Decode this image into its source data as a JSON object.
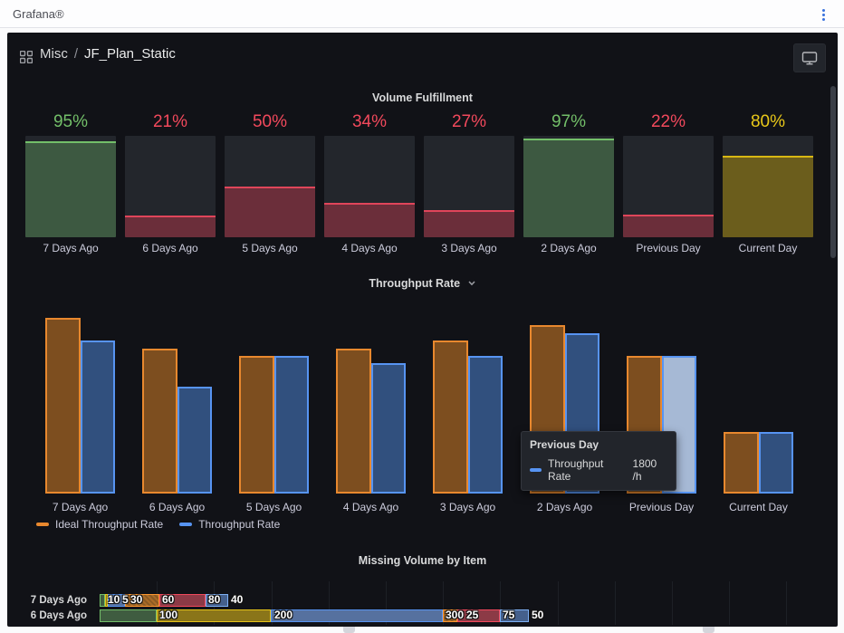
{
  "topbar": {
    "brand": "Grafana®"
  },
  "icons": {
    "menu": "kebab-menu-icon",
    "breadcrumb": "apps-grid-icon",
    "view_mode": "tv-monitor-icon",
    "panel_menu": "chevron-down-icon"
  },
  "breadcrumb": {
    "section": "Misc",
    "separator": "/",
    "dashboard": "JF_Plan_Static"
  },
  "volume_panel": {
    "title": "Volume Fulfillment",
    "palette": {
      "green": {
        "accent": "#73bf69",
        "fill": "#3d5941",
        "text": "#73bf69"
      },
      "red": {
        "accent": "#e0455a",
        "fill": "#6b2e3a",
        "text": "#f2495c"
      },
      "yellow": {
        "accent": "#d9b813",
        "fill": "#6b5d1c",
        "text": "#e9c819"
      }
    },
    "gauges": [
      {
        "label": "7 Days Ago",
        "percent": 95,
        "display": "95%",
        "color": "green"
      },
      {
        "label": "6 Days Ago",
        "percent": 21,
        "display": "21%",
        "color": "red"
      },
      {
        "label": "5 Days Ago",
        "percent": 50,
        "display": "50%",
        "color": "red"
      },
      {
        "label": "4 Days Ago",
        "percent": 34,
        "display": "34%",
        "color": "red"
      },
      {
        "label": "3 Days Ago",
        "percent": 27,
        "display": "27%",
        "color": "red"
      },
      {
        "label": "2 Days Ago",
        "percent": 97,
        "display": "97%",
        "color": "green"
      },
      {
        "label": "Previous Day",
        "percent": 22,
        "display": "22%",
        "color": "red"
      },
      {
        "label": "Current Day",
        "percent": 80,
        "display": "80%",
        "color": "yellow"
      }
    ]
  },
  "throughput_panel": {
    "title": "Throughput Rate",
    "categories": [
      "7 Days Ago",
      "6 Days Ago",
      "5 Days Ago",
      "4 Days Ago",
      "3 Days Ago",
      "2 Days Ago",
      "Previous Day",
      "Current Day"
    ],
    "series": [
      {
        "name": "Ideal Throughput Rate",
        "border": "#e8882e",
        "fill": "#7d4e1f",
        "values": [
          2300,
          1900,
          1800,
          1900,
          2000,
          2200,
          1800,
          800
        ]
      },
      {
        "name": "Throughput Rate",
        "border": "#5794f2",
        "fill": "#31507e",
        "values": [
          2000,
          1400,
          1800,
          1700,
          1800,
          2100,
          1800,
          800
        ]
      }
    ],
    "hover": {
      "category_index": 6,
      "series_index": 1,
      "fill": "#a6b9d5"
    },
    "legend": [
      {
        "label": "Ideal Throughput Rate",
        "color": "#e8882e"
      },
      {
        "label": "Throughput Rate",
        "color": "#5794f2"
      }
    ],
    "tooltip": {
      "title": "Previous Day",
      "series": "Throughput Rate",
      "value": "1800 /h",
      "color": "#5794f2"
    }
  },
  "missing_panel": {
    "title": "Missing Volume by Item",
    "palette": {
      "green": {
        "border": "#73bf69",
        "fill": "#3f5c40"
      },
      "yellow": {
        "border": "#e7c419",
        "fill": "#8a7519"
      },
      "blue": {
        "border": "#5794f2",
        "fill": "#56719f"
      },
      "orange": {
        "border": "#ff9830",
        "fill": "#8a5a24"
      },
      "red": {
        "border": "#f2495c",
        "fill": "#8c3a46"
      },
      "lightblue": {
        "border": "#7eb0f5",
        "fill": "#45608c"
      }
    },
    "rows": [
      {
        "label": "7 Days Ago",
        "segments": [
          {
            "value": 10,
            "color": "green"
          },
          {
            "value": 5,
            "color": "yellow"
          },
          {
            "value": 30,
            "color": "blue"
          },
          {
            "value": 60,
            "color": "orange"
          },
          {
            "value": 80,
            "color": "red"
          },
          {
            "value": 40,
            "color": "lightblue"
          }
        ]
      },
      {
        "label": "6 Days Ago",
        "segments": [
          {
            "value": 100,
            "color": "green"
          },
          {
            "value": 200,
            "color": "yellow"
          },
          {
            "value": 300,
            "color": "blue"
          },
          {
            "value": 25,
            "color": "orange"
          },
          {
            "value": 75,
            "color": "red"
          },
          {
            "value": 50,
            "color": "lightblue"
          }
        ]
      }
    ]
  },
  "chart_data": [
    {
      "type": "bar",
      "title": "Volume Fulfillment",
      "categories": [
        "7 Days Ago",
        "6 Days Ago",
        "5 Days Ago",
        "4 Days Ago",
        "3 Days Ago",
        "2 Days Ago",
        "Previous Day",
        "Current Day"
      ],
      "values": [
        95,
        21,
        50,
        34,
        27,
        97,
        22,
        80
      ],
      "unit": "%",
      "value_colors": [
        "green",
        "red",
        "red",
        "red",
        "red",
        "green",
        "red",
        "yellow"
      ],
      "ylim": [
        0,
        100
      ],
      "grid": false,
      "legend_position": "none"
    },
    {
      "type": "bar",
      "title": "Throughput Rate",
      "categories": [
        "7 Days Ago",
        "6 Days Ago",
        "5 Days Ago",
        "4 Days Ago",
        "3 Days Ago",
        "2 Days Ago",
        "Previous Day",
        "Current Day"
      ],
      "series": [
        {
          "name": "Ideal Throughput Rate",
          "values": [
            2300,
            1900,
            1800,
            1900,
            2000,
            2200,
            1800,
            800
          ]
        },
        {
          "name": "Throughput Rate",
          "values": [
            2000,
            1400,
            1800,
            1700,
            1800,
            2100,
            1800,
            800
          ]
        }
      ],
      "unit": "/h",
      "ylim": [
        0,
        2400
      ],
      "grid": false,
      "legend_position": "bottom-left",
      "annotations": [
        "tooltip: Previous Day / Throughput Rate = 1800 /h"
      ]
    },
    {
      "type": "bar",
      "orientation": "horizontal",
      "stacked": true,
      "title": "Missing Volume by Item",
      "categories": [
        "7 Days Ago",
        "6 Days Ago"
      ],
      "series": [
        {
          "name": "green",
          "values": [
            10,
            100
          ]
        },
        {
          "name": "yellow",
          "values": [
            5,
            200
          ]
        },
        {
          "name": "blue",
          "values": [
            30,
            300
          ]
        },
        {
          "name": "orange",
          "values": [
            60,
            25
          ]
        },
        {
          "name": "red",
          "values": [
            80,
            75
          ]
        },
        {
          "name": "lightblue",
          "values": [
            40,
            50
          ]
        }
      ],
      "xlim": [
        0,
        1300
      ],
      "grid": true,
      "legend_position": "none"
    }
  ]
}
